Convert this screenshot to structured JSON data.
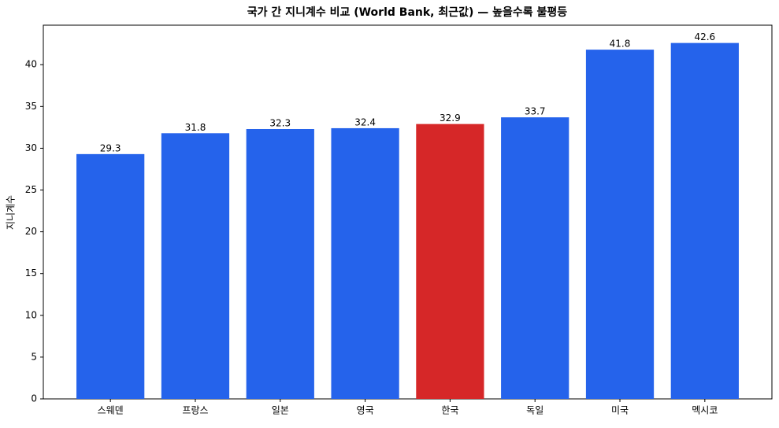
{
  "chart_data": {
    "type": "bar",
    "title": "국가 간 지니계수 비교 (World Bank, 최근값) — 높을수록 불평등",
    "y_label": "지니계수",
    "categories": [
      "스웨덴",
      "프랑스",
      "일본",
      "영국",
      "한국",
      "독일",
      "미국",
      "멕시코"
    ],
    "values": [
      29.3,
      31.8,
      32.3,
      32.4,
      32.9,
      33.7,
      41.8,
      42.6
    ],
    "colors": [
      "#2563eb",
      "#2563eb",
      "#2563eb",
      "#2563eb",
      "#d62728",
      "#2563eb",
      "#2563eb",
      "#2563eb"
    ],
    "ylim": [
      0,
      44.73
    ],
    "yticks": [
      0,
      5,
      10,
      15,
      20,
      25,
      30,
      35,
      40
    ],
    "grid": false
  }
}
